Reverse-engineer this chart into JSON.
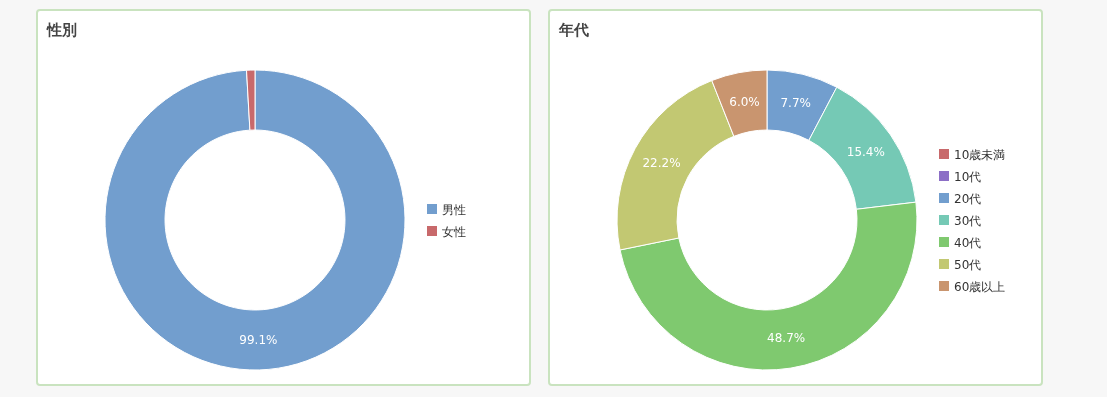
{
  "chart_data": [
    {
      "type": "donut",
      "title": "性別",
      "categories": [
        "男性",
        "女性"
      ],
      "values": [
        99.1,
        0.9
      ],
      "colors": [
        "#729ece",
        "#c8696b"
      ],
      "value_labels": [
        "99.1%",
        null
      ],
      "legend": "right"
    },
    {
      "type": "donut",
      "title": "年代",
      "categories": [
        "10歳未満",
        "10代",
        "20代",
        "30代",
        "40代",
        "50代",
        "60歳以上"
      ],
      "values": [
        0,
        0,
        7.7,
        15.4,
        48.7,
        22.2,
        6.0
      ],
      "colors": [
        "#c8696b",
        "#8c6fc6",
        "#729ece",
        "#75c9b5",
        "#7fc96f",
        "#c2c872",
        "#c9956f"
      ],
      "value_labels": [
        null,
        null,
        "7.7%",
        "15.4%",
        "48.7%",
        "22.2%",
        "6.0%"
      ],
      "legend": "right"
    }
  ]
}
